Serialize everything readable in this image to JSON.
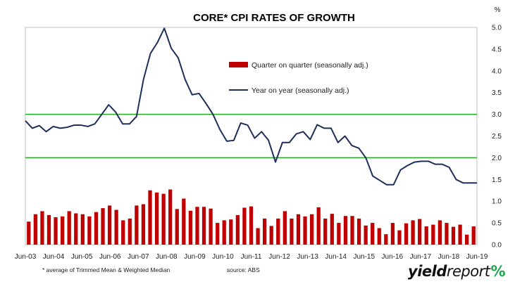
{
  "chart_data": {
    "type": "bar",
    "title": "CORE* CPI RATES OF GROWTH",
    "y_unit_label": "%",
    "ylim": [
      0,
      5.0
    ],
    "y_ticks": [
      "0.0",
      "0.5",
      "1.0",
      "1.5",
      "2.0",
      "2.5",
      "3.0",
      "3.5",
      "4.0",
      "4.5",
      "5.0"
    ],
    "x_ticks": [
      "Jun-03",
      "Jun-04",
      "Jun-05",
      "Jun-06",
      "Jun-07",
      "Jun-08",
      "Jun-09",
      "Jun-10",
      "Jun-11",
      "Jun-12",
      "Jun-13",
      "Jun-14",
      "Jun-15",
      "Jun-16",
      "Jun-17",
      "Jun-18",
      "Jun-19"
    ],
    "grid": false,
    "reference_lines": [
      2.0,
      3.0
    ],
    "legend_position": "upper-center",
    "series": [
      {
        "name": "Quarter on quarter (seasonally adj.)",
        "type": "bar",
        "color": "#c00000",
        "values": [
          0.53,
          0.7,
          0.77,
          0.68,
          0.63,
          0.65,
          0.77,
          0.72,
          0.7,
          0.65,
          0.75,
          0.84,
          0.9,
          0.8,
          0.56,
          0.6,
          0.9,
          0.93,
          1.25,
          1.2,
          1.17,
          1.27,
          0.82,
          1.06,
          0.78,
          0.87,
          0.87,
          0.83,
          0.5,
          0.56,
          0.58,
          0.68,
          0.85,
          0.88,
          0.38,
          0.6,
          0.43,
          0.6,
          0.77,
          0.6,
          0.7,
          0.65,
          0.7,
          0.86,
          0.6,
          0.71,
          0.5,
          0.66,
          0.66,
          0.6,
          0.44,
          0.5,
          0.38,
          0.24,
          0.5,
          0.33,
          0.49,
          0.56,
          0.59,
          0.42,
          0.46,
          0.56,
          0.5,
          0.41,
          0.46,
          0.23,
          0.42
        ]
      },
      {
        "name": "Year on year (seasonally adj.)",
        "type": "line",
        "color": "#1f2e5a",
        "x": [
          2003.0,
          2003.25,
          2003.5,
          2003.75,
          2004.0,
          2004.25,
          2004.5,
          2004.75,
          2005.0,
          2005.25,
          2005.5,
          2005.75,
          2006.0,
          2006.25,
          2006.5,
          2006.75,
          2007.0,
          2007.25,
          2007.5,
          2007.75,
          2008.0,
          2008.25,
          2008.5,
          2008.75,
          2009.0,
          2009.25,
          2009.5,
          2009.75,
          2010.0,
          2010.25,
          2010.5,
          2010.75,
          2011.0,
          2011.25,
          2011.5,
          2011.75,
          2012.0,
          2012.25,
          2012.5,
          2012.75,
          2013.0,
          2013.25,
          2013.5,
          2013.75,
          2014.0,
          2014.25,
          2014.5,
          2014.75,
          2015.0,
          2015.25,
          2015.5,
          2015.75,
          2016.0,
          2016.25,
          2016.5,
          2016.75,
          2017.0,
          2017.25,
          2017.5,
          2017.75,
          2018.0,
          2018.25,
          2018.5,
          2018.75,
          2019.0,
          2019.25
        ],
        "values": [
          2.85,
          2.68,
          2.74,
          2.6,
          2.72,
          2.68,
          2.7,
          2.75,
          2.75,
          2.72,
          2.78,
          3.0,
          3.22,
          3.05,
          2.78,
          2.78,
          2.95,
          3.8,
          4.4,
          4.65,
          4.98,
          4.52,
          4.3,
          3.8,
          3.45,
          3.48,
          3.25,
          3.0,
          2.65,
          2.38,
          2.4,
          2.8,
          2.75,
          2.45,
          2.6,
          2.4,
          1.9,
          2.35,
          2.35,
          2.55,
          2.6,
          2.42,
          2.76,
          2.68,
          2.68,
          2.35,
          2.5,
          2.28,
          2.22,
          2.0,
          1.58,
          1.48,
          1.38,
          1.38,
          1.72,
          1.82,
          1.9,
          1.92,
          1.92,
          1.85,
          1.85,
          1.78,
          1.5,
          1.42,
          1.42,
          1.42
        ]
      }
    ],
    "footnote": "* average of Trimmed Mean & Weighted Median",
    "source": "source: ABS"
  },
  "brand": {
    "yield": "yield",
    "report": "report",
    "pct": "%"
  }
}
